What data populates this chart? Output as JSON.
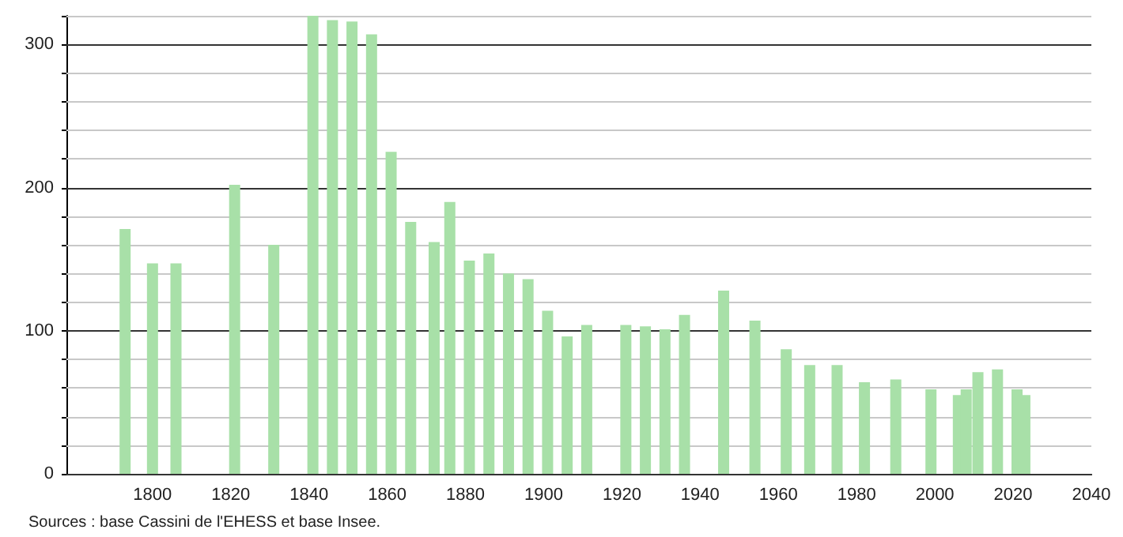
{
  "chart_data": {
    "type": "bar",
    "x": [
      1793,
      1800,
      1806,
      1821,
      1831,
      1841,
      1846,
      1851,
      1856,
      1861,
      1866,
      1872,
      1876,
      1881,
      1886,
      1891,
      1896,
      1901,
      1906,
      1911,
      1921,
      1926,
      1931,
      1936,
      1946,
      1954,
      1962,
      1968,
      1975,
      1982,
      1990,
      1999,
      2006,
      2008,
      2011,
      2016,
      2021,
      2023
    ],
    "values": [
      171,
      147,
      147,
      202,
      160,
      320,
      317,
      316,
      307,
      225,
      176,
      162,
      190,
      149,
      154,
      140,
      136,
      114,
      96,
      104,
      104,
      103,
      101,
      111,
      128,
      107,
      87,
      76,
      76,
      64,
      66,
      59,
      55,
      59,
      71,
      73,
      59,
      55
    ],
    "color": "#a8e0a8",
    "xlim": [
      1778,
      2040
    ],
    "xticks": [
      1800,
      1820,
      1840,
      1860,
      1880,
      1900,
      1920,
      1940,
      1960,
      1980,
      2000,
      2020,
      2040
    ],
    "ylim": [
      0,
      320
    ],
    "yticks": [
      0,
      {
        "value": 20,
        "label": null
      },
      {
        "value": 40,
        "label": null
      },
      {
        "value": 60,
        "label": null
      },
      {
        "value": 80,
        "label": null
      },
      100,
      {
        "value": 120,
        "label": null
      },
      {
        "value": 140,
        "label": null
      },
      {
        "value": 160,
        "label": null
      },
      {
        "value": 180,
        "label": null
      },
      200,
      {
        "value": 220,
        "label": null
      },
      {
        "value": 240,
        "label": null
      },
      {
        "value": 260,
        "label": null
      },
      {
        "value": 280,
        "label": null
      },
      300,
      {
        "value": 320,
        "label": null
      }
    ],
    "grid": "y",
    "annotations": [
      "Sources : base Cassini de l'EHESS et base Insee."
    ]
  }
}
